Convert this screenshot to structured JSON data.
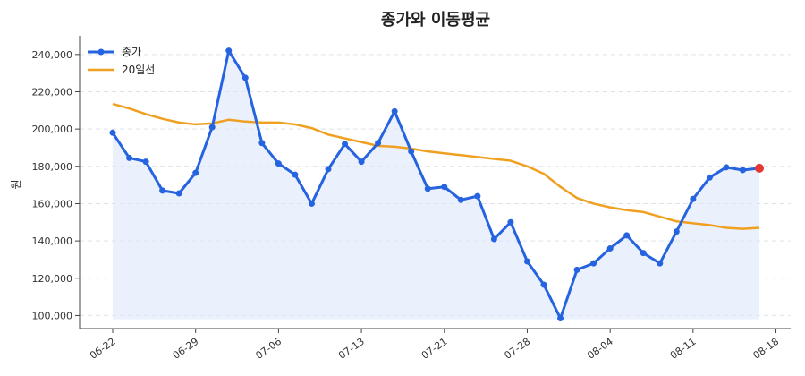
{
  "chart_data": {
    "type": "line",
    "title": "종가와 이동평균",
    "xlabel": "",
    "ylabel": "원",
    "ylim": [
      93000,
      250000
    ],
    "yticks": [
      100000,
      120000,
      140000,
      160000,
      180000,
      200000,
      220000,
      240000
    ],
    "ytick_labels": [
      "100,000",
      "120,000",
      "140,000",
      "160,000",
      "180,000",
      "200,000",
      "220,000",
      "240,000"
    ],
    "xtick_labels": [
      "06-22",
      "06-29",
      "07-06",
      "07-13",
      "07-21",
      "07-28",
      "08-04",
      "08-11",
      "08-18"
    ],
    "xtick_index": [
      0,
      5,
      10,
      15,
      20,
      25,
      30,
      35,
      40
    ],
    "grid": true,
    "legend_position": "top-left",
    "colors": {
      "close": "#2563e0",
      "ma": "#f0a020",
      "area": "#dfe8fb",
      "last_point": "#e53935"
    },
    "series": [
      {
        "name": "종가",
        "values": [
          198000,
          184500,
          182500,
          167000,
          165500,
          176500,
          201000,
          242000,
          227500,
          192500,
          181500,
          175500,
          160000,
          178500,
          192000,
          182500,
          192500,
          209500,
          188000,
          168000,
          169000,
          162000,
          164000,
          141000,
          150000,
          129000,
          116500,
          98500,
          124500,
          128000,
          136000,
          143000,
          133500,
          128000,
          145000,
          162500,
          174000,
          179500,
          178000,
          179000
        ]
      },
      {
        "name": "20일선",
        "values": [
          213500,
          211000,
          208000,
          205500,
          203500,
          202500,
          203000,
          205000,
          204000,
          203500,
          203500,
          202500,
          200500,
          197000,
          195000,
          193000,
          191000,
          190500,
          189500,
          188000,
          187000,
          186000,
          185000,
          184000,
          183000,
          180000,
          176000,
          169000,
          163000,
          160000,
          158000,
          156500,
          155500,
          153000,
          150500,
          149500,
          148500,
          147000,
          146500,
          147000
        ]
      }
    ]
  }
}
